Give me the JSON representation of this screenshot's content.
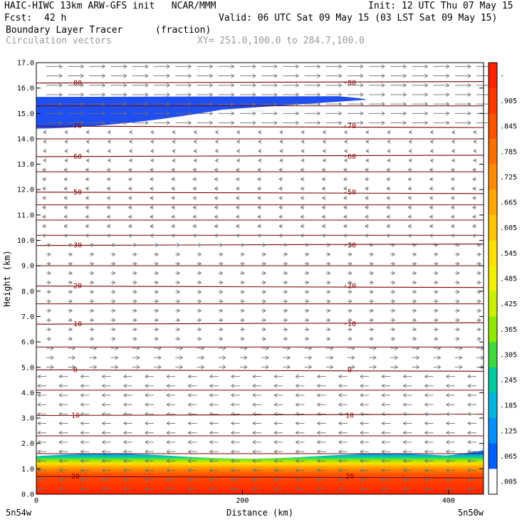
{
  "header": {
    "line1_left": "HAIC-HIWC 13km ARW-GFS init   NCAR/MMM",
    "line1_right": "Init: 12 UTC Thu 07 May 15",
    "fcst_label": "Fcst:",
    "fcst_value": "42 h",
    "valid": "Valid: 06 UTC Sat 09 May 15 (03 LST Sat 09 May 15)",
    "field_name": "Boundary Layer Tracer",
    "field_units": "(fraction)",
    "vector_label": "Circulation vectors",
    "xy_label": "XY= 251.0,100.0 to 284.7,100.0"
  },
  "chart_data": {
    "type": "heatmap",
    "title": "Boundary Layer Tracer",
    "units": "(fraction)",
    "xlabel": "Distance (km)",
    "ylabel": "Height (km)",
    "xlim": [
      0,
      434
    ],
    "ylim": [
      0,
      17
    ],
    "x_ticks": [
      "0",
      "200",
      "400"
    ],
    "x_tick_values": [
      0,
      200,
      400
    ],
    "x_endpoint_labels": {
      "left": "5n54w",
      "right": "5n50w"
    },
    "y_ticks": [
      "0.0",
      "1.0",
      "2.0",
      "3.0",
      "4.0",
      "5.0",
      "6.0",
      "7.0",
      "8.0",
      "9.0",
      "10.0",
      "11.0",
      "12.0",
      "13.0",
      "14.0",
      "15.0",
      "16.0",
      "17.0"
    ],
    "colorbar": {
      "labels": [
        "-",
        ".905",
        ".845",
        ".785",
        ".725",
        ".665",
        ".605",
        ".545",
        ".485",
        ".425",
        ".365",
        ".305",
        ".245",
        ".185",
        ".125",
        ".065",
        ".005"
      ],
      "colors": [
        "#ff2400",
        "#ff3a00",
        "#ff5500",
        "#ff7000",
        "#ff8c00",
        "#ffa800",
        "#ffc400",
        "#ffe000",
        "#f0f000",
        "#c8f000",
        "#90e800",
        "#40d840",
        "#00c8a0",
        "#00b4e0",
        "#0090ff",
        "#0060ff",
        "#ffffff"
      ]
    },
    "temperature_contours": [
      {
        "label": "-80",
        "y": 16.2
      },
      {
        "label": "-70",
        "y": 14.5
      },
      {
        "label": "-60",
        "y": 13.3
      },
      {
        "label": "-50",
        "y": 11.9
      },
      {
        "label": "-30",
        "y": 9.8
      },
      {
        "label": "-20",
        "y": 8.2
      },
      {
        "label": "-10",
        "y": 6.7
      },
      {
        "label": "0",
        "y": 4.9
      },
      {
        "label": "10",
        "y": 3.1
      },
      {
        "label": "20",
        "y": 0.7
      }
    ],
    "upper_tracer_layer": {
      "ybottom": 14.4,
      "ytop": 15.65,
      "xend": 320
    },
    "boundary_layer_top_km": 1.5
  }
}
